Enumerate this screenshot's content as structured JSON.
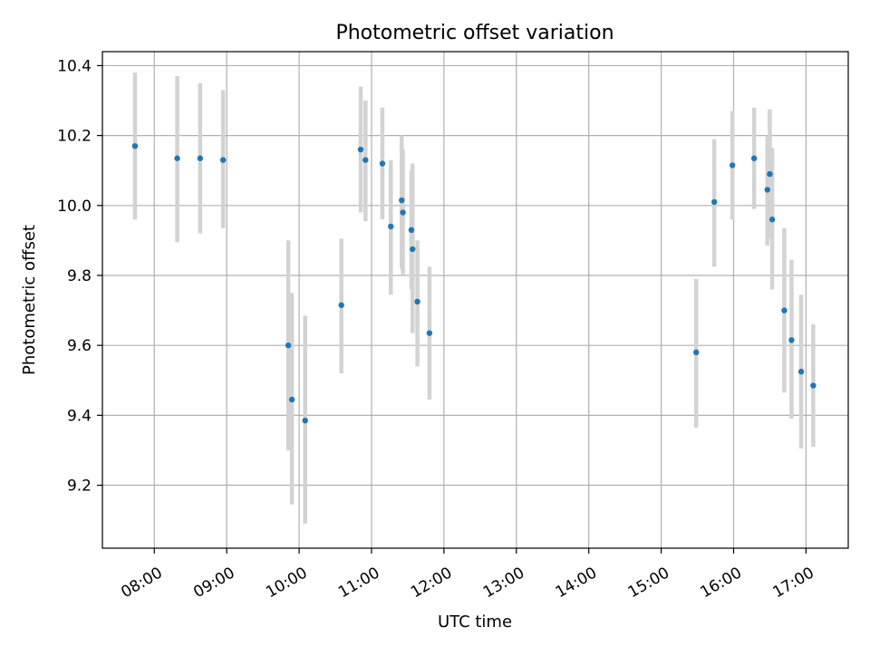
{
  "chart_data": {
    "type": "scatter",
    "title": "Photometric offset variation",
    "xlabel": "UTC time",
    "ylabel": "Photometric offset",
    "xlim": [
      "07:17",
      "17:35"
    ],
    "ylim": [
      9.02,
      10.44
    ],
    "grid": true,
    "x_ticks": [
      "08:00",
      "09:00",
      "10:00",
      "11:00",
      "12:00",
      "13:00",
      "14:00",
      "15:00",
      "16:00",
      "17:00"
    ],
    "y_ticks": [
      9.2,
      9.4,
      9.6,
      9.8,
      10.0,
      10.2,
      10.4
    ],
    "y_tick_labels": [
      "9.2",
      "9.4",
      "9.6",
      "9.8",
      "10.0",
      "10.2",
      "10.4"
    ],
    "points": [
      {
        "x": "07:44",
        "y": 10.17,
        "lo": 9.96,
        "hi": 10.38
      },
      {
        "x": "08:19",
        "y": 10.135,
        "lo": 9.895,
        "hi": 10.37
      },
      {
        "x": "08:38",
        "y": 10.135,
        "lo": 9.92,
        "hi": 10.35
      },
      {
        "x": "08:57",
        "y": 10.13,
        "lo": 9.935,
        "hi": 10.33
      },
      {
        "x": "09:51",
        "y": 9.6,
        "lo": 9.3,
        "hi": 9.9
      },
      {
        "x": "09:54",
        "y": 9.445,
        "lo": 9.145,
        "hi": 9.75
      },
      {
        "x": "10:05",
        "y": 9.385,
        "lo": 9.09,
        "hi": 9.685
      },
      {
        "x": "10:35",
        "y": 9.715,
        "lo": 9.52,
        "hi": 9.905
      },
      {
        "x": "10:51",
        "y": 10.16,
        "lo": 9.98,
        "hi": 10.34
      },
      {
        "x": "10:55",
        "y": 10.13,
        "lo": 9.955,
        "hi": 10.3
      },
      {
        "x": "11:09",
        "y": 10.12,
        "lo": 9.96,
        "hi": 10.28
      },
      {
        "x": "11:16",
        "y": 9.94,
        "lo": 9.745,
        "hi": 10.13
      },
      {
        "x": "11:25",
        "y": 10.015,
        "lo": 9.82,
        "hi": 10.2
      },
      {
        "x": "11:26",
        "y": 9.98,
        "lo": 9.8,
        "hi": 10.16
      },
      {
        "x": "11:33",
        "y": 9.93,
        "lo": 9.76,
        "hi": 10.1
      },
      {
        "x": "11:34",
        "y": 9.875,
        "lo": 9.635,
        "hi": 10.12
      },
      {
        "x": "11:38",
        "y": 9.725,
        "lo": 9.54,
        "hi": 9.9
      },
      {
        "x": "11:48",
        "y": 9.635,
        "lo": 9.445,
        "hi": 9.825
      },
      {
        "x": "15:29",
        "y": 9.58,
        "lo": 9.365,
        "hi": 9.79
      },
      {
        "x": "15:44",
        "y": 10.01,
        "lo": 9.825,
        "hi": 10.19
      },
      {
        "x": "15:59",
        "y": 10.115,
        "lo": 9.96,
        "hi": 10.27
      },
      {
        "x": "16:17",
        "y": 10.135,
        "lo": 9.99,
        "hi": 10.28
      },
      {
        "x": "16:28",
        "y": 10.045,
        "lo": 9.885,
        "hi": 10.2
      },
      {
        "x": "16:30",
        "y": 10.09,
        "lo": 9.905,
        "hi": 10.275
      },
      {
        "x": "16:32",
        "y": 9.96,
        "lo": 9.76,
        "hi": 10.165
      },
      {
        "x": "16:42",
        "y": 9.7,
        "lo": 9.465,
        "hi": 9.935
      },
      {
        "x": "16:48",
        "y": 9.615,
        "lo": 9.39,
        "hi": 9.845
      },
      {
        "x": "16:56",
        "y": 9.525,
        "lo": 9.305,
        "hi": 9.745
      },
      {
        "x": "17:06",
        "y": 9.485,
        "lo": 9.31,
        "hi": 9.66
      }
    ],
    "colors": {
      "marker": "#1f77b4",
      "errorbar": "#d3d3d3",
      "grid": "#b0b0b0",
      "axes": "#000000"
    }
  }
}
